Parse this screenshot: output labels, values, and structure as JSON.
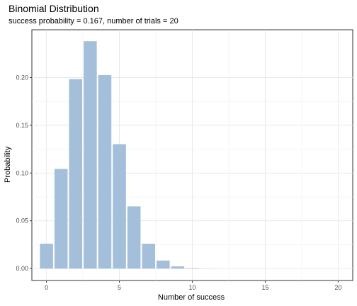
{
  "chart_data": {
    "type": "bar",
    "title": "Binomial Distribution",
    "subtitle": "success probability = 0.167, number of trials = 20",
    "xlabel": "Number of success",
    "ylabel": "Probability",
    "x": [
      0,
      1,
      2,
      3,
      4,
      5,
      6,
      7,
      8,
      9,
      10,
      11,
      12,
      13,
      14,
      15,
      16,
      17,
      18,
      19,
      20
    ],
    "values": [
      0.026,
      0.1043,
      0.1983,
      0.238,
      0.2026,
      0.1302,
      0.0651,
      0.026,
      0.0084,
      0.0023,
      0.0005,
      0.0001,
      0,
      0,
      0,
      0,
      0,
      0,
      0,
      0,
      0
    ],
    "xlim": [
      -1,
      21
    ],
    "ylim": [
      -0.0125,
      0.25
    ],
    "x_ticks": [
      0,
      5,
      10,
      15,
      20
    ],
    "x_tick_labels": [
      "0",
      "5",
      "10",
      "15",
      "20"
    ],
    "y_ticks": [
      0,
      0.05,
      0.1,
      0.15,
      0.2
    ],
    "y_tick_labels": [
      "0.00",
      "0.05",
      "0.10",
      "0.15",
      "0.20"
    ],
    "bar_color": "#a3bfd9",
    "grid": true
  }
}
